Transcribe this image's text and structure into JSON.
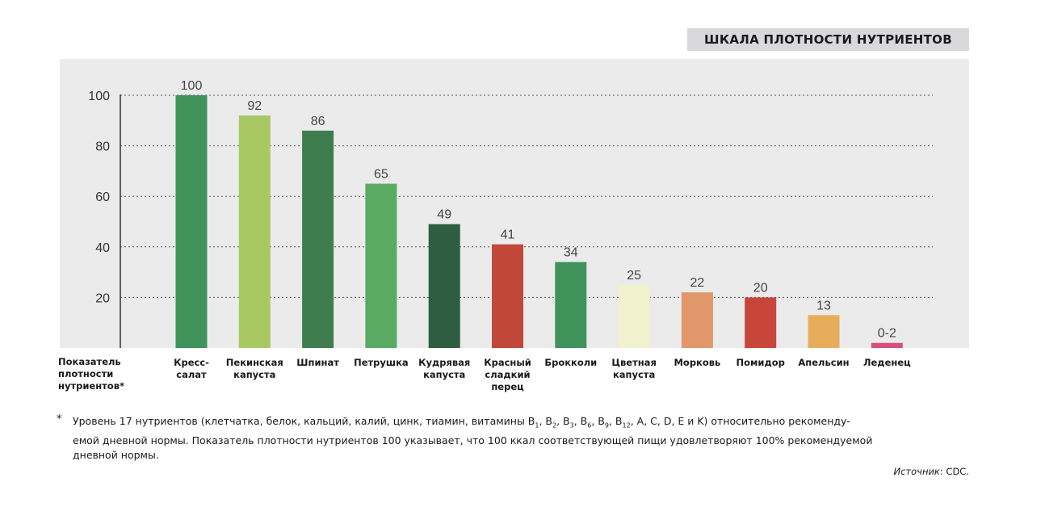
{
  "title": "ШКАЛА ПЛОТНОСТИ НУТРИЕНТОВ",
  "y_axis_caption": [
    "Показатель",
    "плотности",
    "нутриентов*"
  ],
  "chart_data": {
    "type": "bar",
    "categories": [
      [
        "Кресс-",
        "салат"
      ],
      [
        "Пекинская",
        "капуста"
      ],
      [
        "Шпинат"
      ],
      [
        "Петрушка"
      ],
      [
        "Кудрявая",
        "капуста"
      ],
      [
        "Красный",
        "сладкий",
        "перец"
      ],
      [
        "Брокколи"
      ],
      [
        "Цветная",
        "капуста"
      ],
      [
        "Морковь"
      ],
      [
        "Помидор"
      ],
      [
        "Апельсин"
      ],
      [
        "Леденец"
      ]
    ],
    "values": [
      100,
      92,
      86,
      65,
      49,
      41,
      34,
      25,
      22,
      20,
      13,
      2
    ],
    "value_labels": [
      "100",
      "92",
      "86",
      "65",
      "49",
      "41",
      "34",
      "25",
      "22",
      "20",
      "13",
      "0-2"
    ],
    "colors": [
      "#3f935b",
      "#a8c864",
      "#3f7d4f",
      "#5aaa64",
      "#2f5d3f",
      "#c0473a",
      "#3f935b",
      "#f1f1cd",
      "#e0976a",
      "#c8453a",
      "#e8ad5a",
      "#d65079"
    ],
    "yticks": [
      20,
      40,
      60,
      80,
      100
    ],
    "ylim": [
      0,
      100
    ],
    "grid": true,
    "plot_bg": "#ebebeb"
  },
  "footnote": {
    "marker": "*",
    "line1_a": "Уровень 17 нутриентов (клетчатка, белок, кальций, калий, цинк, тиамин, витамины B",
    "line1_subs": [
      "1",
      "2",
      "3",
      "6",
      "9",
      "12"
    ],
    "line1_b": ", A, C, D, E и K) относительно рекоменду-",
    "line2": "емой дневной нормы. Показатель плотности нутриентов 100 указывает, что 100 ккал соответствующей пищи удовлетворяют 100% рекомендуемой",
    "line3": "дневной нормы."
  },
  "source": {
    "label": "Источник",
    "value": ": CDC."
  }
}
